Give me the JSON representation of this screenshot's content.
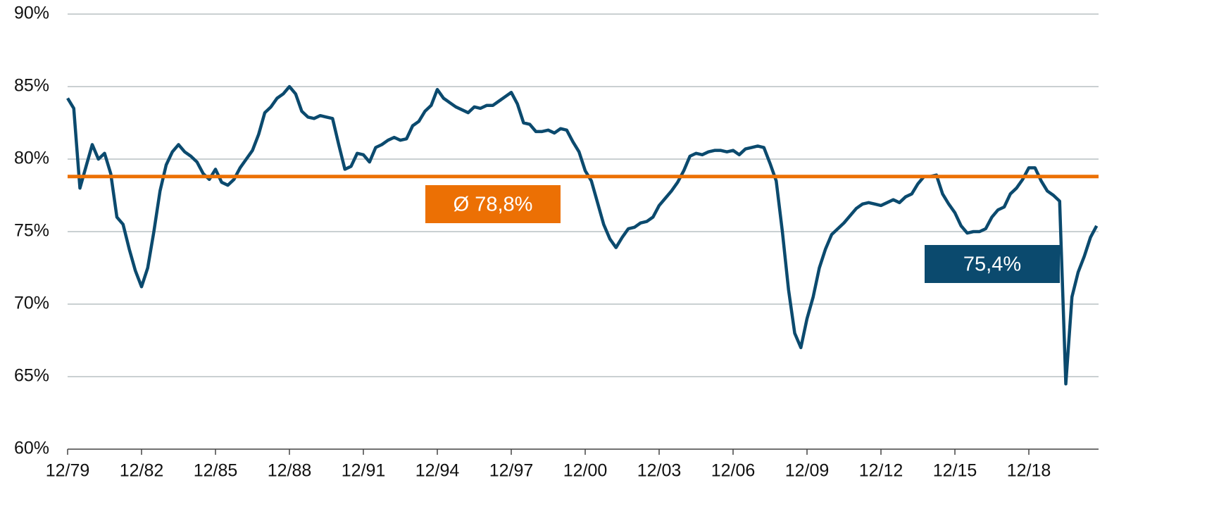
{
  "chart_data": {
    "type": "line",
    "categories": [
      "12/79",
      null,
      null,
      null,
      null,
      null,
      null,
      null,
      null,
      null,
      null,
      null,
      "12/82",
      null,
      null,
      null,
      null,
      null,
      null,
      null,
      null,
      null,
      null,
      null,
      "12/85",
      null,
      null,
      null,
      null,
      null,
      null,
      null,
      null,
      null,
      null,
      null,
      "12/88",
      null,
      null,
      null,
      null,
      null,
      null,
      null,
      null,
      null,
      null,
      null,
      "12/91",
      null,
      null,
      null,
      null,
      null,
      null,
      null,
      null,
      null,
      null,
      null,
      "12/94",
      null,
      null,
      null,
      null,
      null,
      null,
      null,
      null,
      null,
      null,
      null,
      "12/97",
      null,
      null,
      null,
      null,
      null,
      null,
      null,
      null,
      null,
      null,
      null,
      "12/00",
      null,
      null,
      null,
      null,
      null,
      null,
      null,
      null,
      null,
      null,
      null,
      "12/03",
      null,
      null,
      null,
      null,
      null,
      null,
      null,
      null,
      null,
      null,
      null,
      "12/06",
      null,
      null,
      null,
      null,
      null,
      null,
      null,
      null,
      null,
      null,
      null,
      "12/09",
      null,
      null,
      null,
      null,
      null,
      null,
      null,
      null,
      null,
      null,
      null,
      "12/12",
      null,
      null,
      null,
      null,
      null,
      null,
      null,
      null,
      null,
      null,
      null,
      "12/15",
      null,
      null,
      null,
      null,
      null,
      null,
      null,
      null,
      null,
      null,
      null,
      "12/18",
      null,
      null,
      null,
      null,
      null,
      null,
      null,
      null,
      null,
      null,
      null
    ],
    "series": [
      {
        "color": "#0b4a6e",
        "values": [
          84.2,
          83.5,
          78.0,
          79.5,
          81.0,
          80.0,
          80.4,
          79.0,
          76.0,
          75.5,
          73.8,
          72.3,
          71.2,
          72.5,
          75.0,
          77.8,
          79.6,
          80.5,
          81.0,
          80.5,
          80.2,
          79.8,
          79.0,
          78.6,
          79.3,
          78.4,
          78.2,
          78.6,
          79.4,
          80.0,
          80.6,
          81.7,
          83.2,
          83.6,
          84.2,
          84.5,
          85.0,
          84.5,
          83.3,
          82.9,
          82.8,
          83.0,
          82.9,
          82.8,
          81.0,
          79.3,
          79.5,
          80.4,
          80.3,
          79.8,
          80.8,
          81.0,
          81.3,
          81.5,
          81.3,
          81.4,
          82.3,
          82.6,
          83.3,
          83.7,
          84.8,
          84.2,
          83.9,
          83.6,
          83.4,
          83.2,
          83.6,
          83.5,
          83.7,
          83.7,
          84.0,
          84.3,
          84.6,
          83.8,
          82.5,
          82.4,
          81.9,
          81.9,
          82.0,
          81.8,
          82.1,
          82.0,
          81.2,
          80.5,
          79.2,
          78.5,
          77.0,
          75.5,
          74.5,
          73.9,
          74.6,
          75.2,
          75.3,
          75.6,
          75.7,
          76.0,
          76.8,
          77.3,
          77.8,
          78.4,
          79.2,
          80.2,
          80.4,
          80.3,
          80.5,
          80.6,
          80.6,
          80.5,
          80.6,
          80.3,
          80.7,
          80.8,
          80.9,
          80.8,
          79.7,
          78.5,
          75.0,
          71.0,
          68.0,
          67.0,
          69.0,
          70.5,
          72.5,
          73.8,
          74.8,
          75.2,
          75.6,
          76.1,
          76.6,
          76.9,
          77.0,
          76.9,
          76.8,
          77.0,
          77.2,
          77.0,
          77.4,
          77.6,
          78.3,
          78.8,
          78.8,
          78.9,
          77.6,
          76.9,
          76.3,
          75.4,
          74.9,
          75.0,
          75.0,
          75.2,
          76.0,
          76.5,
          76.7,
          77.6,
          78.0,
          78.6,
          79.4,
          79.4,
          78.5,
          77.8,
          77.5,
          77.1,
          64.5,
          70.5,
          72.2,
          73.3,
          74.6,
          75.4
        ]
      }
    ],
    "average": {
      "value": 78.8,
      "label": "Ø 78,8%",
      "color": "#ec7004"
    },
    "last_value_label": "75,4%",
    "ylim": [
      60,
      90
    ],
    "yticks": [
      {
        "value": 60,
        "label": "60%"
      },
      {
        "value": 65,
        "label": "65%"
      },
      {
        "value": 70,
        "label": "70%"
      },
      {
        "value": 75,
        "label": "75%"
      },
      {
        "value": 80,
        "label": "80%"
      },
      {
        "value": 85,
        "label": "85%"
      },
      {
        "value": 90,
        "label": "90%"
      }
    ],
    "grid": true
  }
}
